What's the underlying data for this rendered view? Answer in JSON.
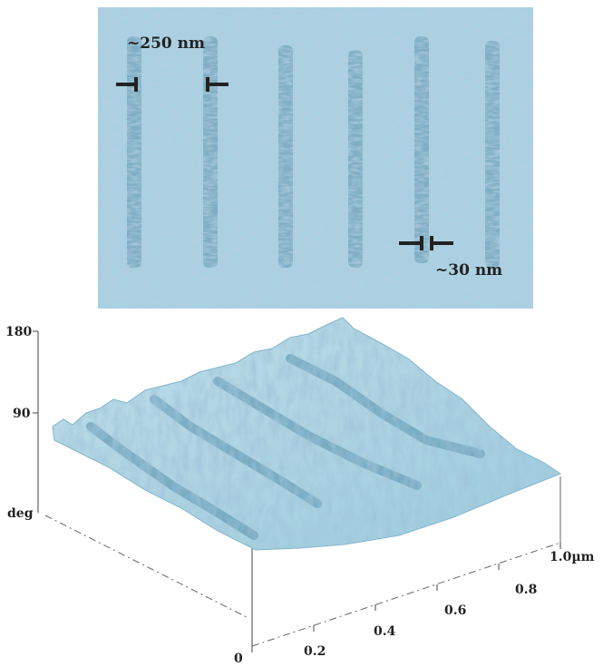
{
  "top_image": {
    "annotations": [
      "~250 nm",
      "~30 nm"
    ]
  },
  "surface_plot": {
    "z_axis": {
      "ticks": [
        "180",
        "90"
      ],
      "unit": "deg"
    },
    "x_axis": {
      "ticks": [
        "0",
        "0.2",
        "0.4",
        "0.6",
        "0.8",
        "1.0µm"
      ]
    }
  }
}
